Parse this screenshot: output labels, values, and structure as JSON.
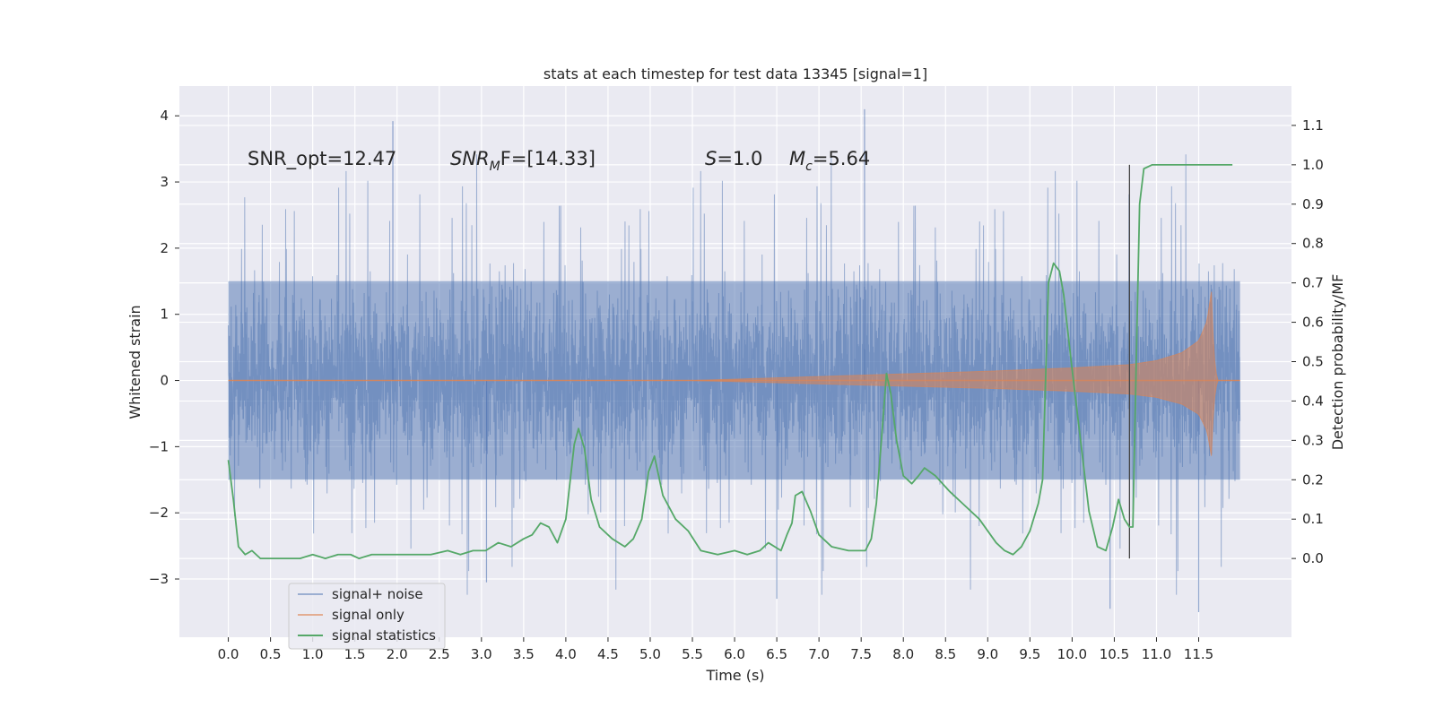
{
  "chart_data": {
    "type": "line",
    "title": "stats at each timestep for test data 13345 [signal=1]",
    "xlabel": "Time (s)",
    "ylabel_left": "Whitened strain",
    "ylabel_right": "Detection probability/MF",
    "xlim": [
      -0.58,
      12.6
    ],
    "ylim_left": [
      -3.88,
      4.45
    ],
    "ylim_right": [
      -0.2,
      1.2
    ],
    "x_ticks": [
      "0.0",
      "0.5",
      "1.0",
      "1.5",
      "2.0",
      "2.5",
      "3.0",
      "3.5",
      "4.0",
      "4.5",
      "5.0",
      "5.5",
      "6.0",
      "6.5",
      "7.0",
      "7.5",
      "8.0",
      "8.5",
      "9.0",
      "9.5",
      "10.0",
      "10.5",
      "11.0",
      "11.5"
    ],
    "y_ticks_left": [
      "4",
      "3",
      "2",
      "1",
      "0",
      "−1",
      "−2",
      "−3"
    ],
    "y_ticks_right": [
      "1.1",
      "1.0",
      "0.9",
      "0.8",
      "0.7",
      "0.6",
      "0.5",
      "0.4",
      "0.3",
      "0.2",
      "0.1",
      "0.0"
    ],
    "grid": true,
    "background": "#eaeaf2",
    "annotations": {
      "snr_opt": "SNR_opt=12.47",
      "snr_mf_main": "SNR",
      "snr_mf_sub": "M",
      "snr_mf_rest": "F=[14.33]",
      "s_main": "S",
      "s_rest": "=1.0",
      "mc_main": "M",
      "mc_sub": "c",
      "mc_rest": "=5.64"
    },
    "vertical_marker_x": 10.68,
    "series": [
      {
        "name": "signal+ noise",
        "color": "#4c72b0",
        "axis": "left",
        "t_start": 0.0,
        "t_end": 11.99,
        "envelope_core": 1.5,
        "peak_max": 4.1,
        "peak_min": -3.55
      },
      {
        "name": "signal only",
        "color": "#dd8452",
        "axis": "left",
        "envelope": {
          "x": [
            0.0,
            5.5,
            6.0,
            7.0,
            8.0,
            9.0,
            10.0,
            10.68,
            11.0,
            11.3,
            11.5,
            11.6,
            11.65,
            11.68,
            11.72,
            11.99
          ],
          "amp": [
            0.0,
            0.0,
            0.02,
            0.06,
            0.1,
            0.14,
            0.19,
            0.24,
            0.3,
            0.42,
            0.6,
            0.9,
            1.35,
            0.4,
            0.0,
            0.0
          ]
        }
      },
      {
        "name": "signal statistics",
        "color": "#55a868",
        "axis": "right",
        "x": [
          0.0,
          0.06,
          0.12,
          0.2,
          0.28,
          0.38,
          0.48,
          0.58,
          0.7,
          0.85,
          1.0,
          1.15,
          1.3,
          1.45,
          1.55,
          1.7,
          1.85,
          2.0,
          2.2,
          2.4,
          2.6,
          2.75,
          2.9,
          3.05,
          3.2,
          3.35,
          3.5,
          3.6,
          3.7,
          3.8,
          3.9,
          4.0,
          4.1,
          4.15,
          4.22,
          4.3,
          4.4,
          4.55,
          4.7,
          4.8,
          4.9,
          4.98,
          5.05,
          5.15,
          5.3,
          5.45,
          5.6,
          5.8,
          6.0,
          6.15,
          6.3,
          6.4,
          6.55,
          6.62,
          6.68,
          6.72,
          6.8,
          6.9,
          7.0,
          7.15,
          7.35,
          7.55,
          7.62,
          7.68,
          7.74,
          7.8,
          7.85,
          7.92,
          8.0,
          8.1,
          8.18,
          8.25,
          8.38,
          8.55,
          8.7,
          8.9,
          9.1,
          9.2,
          9.3,
          9.4,
          9.5,
          9.6,
          9.65,
          9.72,
          9.78,
          9.85,
          9.9,
          10.0,
          10.1,
          10.2,
          10.3,
          10.4,
          10.48,
          10.55,
          10.62,
          10.68,
          10.72,
          10.76,
          10.8,
          10.85,
          10.95,
          11.1,
          11.3,
          11.5,
          11.7,
          11.9
        ],
        "y": [
          0.25,
          0.15,
          0.03,
          0.01,
          0.02,
          0.0,
          0.0,
          0.0,
          0.0,
          0.0,
          0.01,
          0.0,
          0.01,
          0.01,
          0.0,
          0.01,
          0.01,
          0.01,
          0.01,
          0.01,
          0.02,
          0.01,
          0.02,
          0.02,
          0.04,
          0.03,
          0.05,
          0.06,
          0.09,
          0.08,
          0.04,
          0.1,
          0.29,
          0.33,
          0.28,
          0.15,
          0.08,
          0.05,
          0.03,
          0.05,
          0.1,
          0.22,
          0.26,
          0.16,
          0.1,
          0.07,
          0.02,
          0.01,
          0.02,
          0.01,
          0.02,
          0.04,
          0.02,
          0.06,
          0.09,
          0.16,
          0.17,
          0.12,
          0.06,
          0.03,
          0.02,
          0.02,
          0.05,
          0.14,
          0.3,
          0.47,
          0.42,
          0.3,
          0.21,
          0.19,
          0.21,
          0.23,
          0.21,
          0.17,
          0.14,
          0.1,
          0.04,
          0.02,
          0.01,
          0.03,
          0.07,
          0.14,
          0.2,
          0.7,
          0.75,
          0.73,
          0.67,
          0.48,
          0.3,
          0.12,
          0.03,
          0.02,
          0.08,
          0.15,
          0.1,
          0.08,
          0.08,
          0.5,
          0.9,
          0.99,
          1.0,
          1.0,
          1.0,
          1.0,
          1.0,
          1.0
        ],
        "x_end": 11.9
      }
    ],
    "legend": {
      "placement": "lower-left",
      "entries": [
        "signal+ noise",
        "signal only",
        "signal statistics"
      ]
    }
  }
}
